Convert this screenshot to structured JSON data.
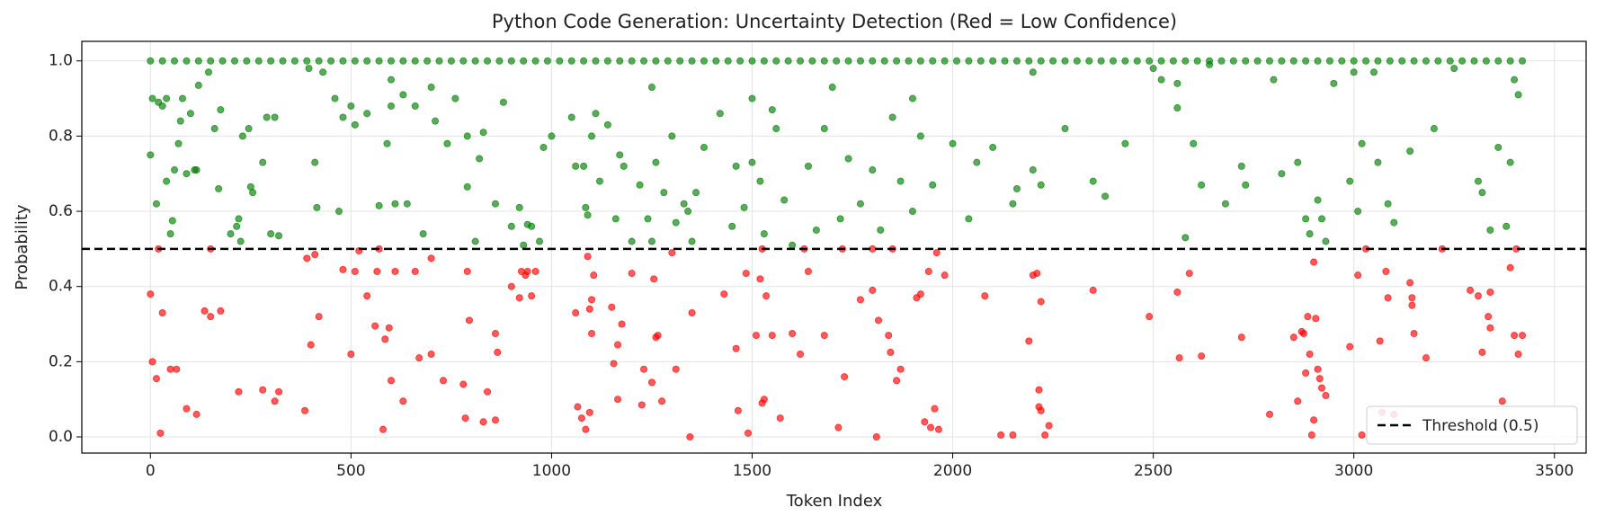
{
  "chart_data": {
    "type": "scatter",
    "title": "Python Code Generation: Uncertainty Detection (Red = Low Confidence)",
    "x_label": "Token Index",
    "y_label": "Probability",
    "xlim": [
      -171,
      3579
    ],
    "ylim": [
      -0.043,
      1.052
    ],
    "xticks": [
      0,
      500,
      1000,
      1500,
      2000,
      2500,
      3000,
      3500
    ],
    "yticks": [
      {
        "value": 0,
        "label": "0.0"
      },
      0.2,
      0.4,
      0.6,
      0.8,
      {
        "value": 1,
        "label": "1.0"
      }
    ],
    "grid": true,
    "legend_position": "lower right",
    "threshold": {
      "value": 0.5,
      "label": "Threshold (0.5)",
      "color": "#000000"
    },
    "series": [
      {
        "color": "#ff0000",
        "x": [
          0,
          5,
          15,
          20,
          25,
          30,
          50,
          65,
          90,
          115,
          135,
          150,
          150,
          175,
          220,
          280,
          310,
          320,
          385,
          390,
          400,
          410,
          420,
          480,
          500,
          510,
          520,
          540,
          560,
          565,
          570,
          580,
          585,
          595,
          600,
          610,
          630,
          660,
          670,
          700,
          700,
          730,
          780,
          785,
          790,
          795,
          830,
          840,
          860,
          860,
          865,
          900,
          920,
          925,
          935,
          940,
          950,
          960,
          1060,
          1065,
          1075,
          1085,
          1090,
          1095,
          1100,
          1100,
          1105,
          1095,
          1150,
          1155,
          1165,
          1175,
          1165,
          1200,
          1225,
          1230,
          1250,
          1255,
          1260,
          1265,
          1275,
          1300,
          1310,
          1345,
          1350,
          1430,
          1460,
          1465,
          1485,
          1490,
          1510,
          1520,
          1525,
          1530,
          1535,
          1525,
          1550,
          1570,
          1600,
          1620,
          1630,
          1640,
          1680,
          1715,
          1725,
          1730,
          1770,
          1800,
          1800,
          1810,
          1815,
          1840,
          1845,
          1850,
          1860,
          1870,
          1910,
          1920,
          1930,
          1940,
          1945,
          1955,
          1960,
          1965,
          1980,
          2080,
          2120,
          2150,
          2190,
          2200,
          2210,
          2215,
          2215,
          2220,
          2220,
          2230,
          2240,
          2350,
          2490,
          2560,
          2565,
          2590,
          2620,
          2720,
          2790,
          2850,
          2860,
          2870,
          2875,
          2880,
          2885,
          2890,
          2895,
          2900,
          2905,
          2910,
          2915,
          2920,
          2930,
          2990,
          3010,
          3020,
          3030,
          3065,
          3070,
          3080,
          3085,
          3100,
          3140,
          3145,
          3145,
          3150,
          3180,
          3220,
          3290,
          3310,
          3320,
          3340,
          3335,
          3340,
          3370,
          3390,
          3400,
          3405,
          3410,
          3420,
          2900
        ],
        "values": [
          0.38,
          0.2,
          0.155,
          0.5,
          0.01,
          0.33,
          0.18,
          0.18,
          0.075,
          0.06,
          0.335,
          0.32,
          0.5,
          0.335,
          0.12,
          0.125,
          0.095,
          0.12,
          0.07,
          0.475,
          0.245,
          0.485,
          0.32,
          0.445,
          0.22,
          0.44,
          0.495,
          0.375,
          0.295,
          0.44,
          0.5,
          0.02,
          0.26,
          0.29,
          0.15,
          0.44,
          0.095,
          0.44,
          0.21,
          0.22,
          0.475,
          0.15,
          0.14,
          0.05,
          0.44,
          0.31,
          0.04,
          0.12,
          0.275,
          0.045,
          0.225,
          0.4,
          0.37,
          0.44,
          0.43,
          0.44,
          0.375,
          0.44,
          0.33,
          0.08,
          0.05,
          0.02,
          0.48,
          0.34,
          0.365,
          0.275,
          0.43,
          0.065,
          0.345,
          0.195,
          0.1,
          0.3,
          0.245,
          0.435,
          0.085,
          0.18,
          0.145,
          0.42,
          0.265,
          0.27,
          0.095,
          0.49,
          0.18,
          0.0,
          0.33,
          0.38,
          0.235,
          0.07,
          0.435,
          0.01,
          0.27,
          0.42,
          0.09,
          0.1,
          0.375,
          0.5,
          0.27,
          0.05,
          0.275,
          0.22,
          0.5,
          0.44,
          0.27,
          0.025,
          0.5,
          0.16,
          0.365,
          0.39,
          0.5,
          0.0,
          0.31,
          0.27,
          0.225,
          0.5,
          0.15,
          0.18,
          0.37,
          0.38,
          0.04,
          0.44,
          0.025,
          0.075,
          0.49,
          0.02,
          0.43,
          0.375,
          0.005,
          0.005,
          0.255,
          0.43,
          0.435,
          0.08,
          0.125,
          0.36,
          0.07,
          0.005,
          0.03,
          0.39,
          0.32,
          0.385,
          0.21,
          0.435,
          0.215,
          0.265,
          0.06,
          0.265,
          0.095,
          0.28,
          0.275,
          0.17,
          0.32,
          0.22,
          0.005,
          0.045,
          0.315,
          0.18,
          0.155,
          0.13,
          0.11,
          0.24,
          0.43,
          0.005,
          0.5,
          0.255,
          0.065,
          0.44,
          0.37,
          0.06,
          0.41,
          0.35,
          0.37,
          0.275,
          0.21,
          0.5,
          0.39,
          0.375,
          0.225,
          0.385,
          0.32,
          0.29,
          0.095,
          0.45,
          0.27,
          0.5,
          0.22,
          0.27,
          0.465
        ]
      },
      {
        "color": "#008000",
        "x": [
          0,
          5,
          15,
          20,
          30,
          40,
          40,
          50,
          55,
          60,
          70,
          75,
          80,
          90,
          100,
          110,
          115,
          120,
          145,
          160,
          170,
          175,
          200,
          215,
          220,
          225,
          230,
          245,
          250,
          255,
          280,
          290,
          300,
          310,
          320,
          395,
          410,
          415,
          430,
          460,
          470,
          480,
          500,
          510,
          540,
          570,
          590,
          600,
          610,
          630,
          640,
          660,
          680,
          710,
          740,
          760,
          790,
          790,
          810,
          820,
          830,
          860,
          880,
          900,
          920,
          930,
          940,
          950,
          970,
          980,
          1000,
          1050,
          1060,
          1080,
          1085,
          1090,
          1100,
          1110,
          1120,
          1140,
          1160,
          1170,
          1180,
          1200,
          1220,
          1240,
          1250,
          1260,
          1280,
          1300,
          1310,
          1330,
          1340,
          1350,
          1360,
          1380,
          1420,
          1450,
          1460,
          1480,
          1500,
          1520,
          1530,
          1560,
          1580,
          1600,
          1640,
          1660,
          1680,
          1720,
          1740,
          1770,
          1800,
          1820,
          1850,
          1870,
          1900,
          1920,
          1950,
          2000,
          2040,
          2060,
          2100,
          2150,
          2160,
          2200,
          2220,
          2280,
          2350,
          2380,
          2430,
          2560,
          2580,
          2600,
          2620,
          2680,
          2720,
          2730,
          2820,
          2860,
          2880,
          2890,
          2910,
          2920,
          2930,
          2990,
          3010,
          3020,
          3060,
          3085,
          3100,
          3140,
          3200,
          3310,
          3320,
          3340,
          3360,
          3380,
          3390,
          3400,
          3410,
          2500,
          2520,
          2560,
          2640,
          3000,
          3050,
          3250,
          1500,
          1550,
          700,
          1700,
          2200,
          2800,
          1250,
          1900,
          600,
          2950
        ],
        "values": [
          0.75,
          0.9,
          0.62,
          0.89,
          0.88,
          0.9,
          0.68,
          0.54,
          0.575,
          0.71,
          0.78,
          0.84,
          0.9,
          0.7,
          0.86,
          0.71,
          0.71,
          0.935,
          0.97,
          0.82,
          0.66,
          0.87,
          0.54,
          0.56,
          0.58,
          0.52,
          0.8,
          0.82,
          0.665,
          0.65,
          0.73,
          0.85,
          0.54,
          0.85,
          0.535,
          0.98,
          0.73,
          0.61,
          0.97,
          0.9,
          0.6,
          0.85,
          0.88,
          0.83,
          0.86,
          0.615,
          0.78,
          0.88,
          0.62,
          0.91,
          0.62,
          0.88,
          0.54,
          0.84,
          0.78,
          0.9,
          0.665,
          0.8,
          0.52,
          0.74,
          0.81,
          0.62,
          0.89,
          0.56,
          0.61,
          0.51,
          0.565,
          0.56,
          0.52,
          0.77,
          0.8,
          0.85,
          0.72,
          0.72,
          0.61,
          0.59,
          0.8,
          0.86,
          0.68,
          0.83,
          0.58,
          0.75,
          0.72,
          0.52,
          0.67,
          0.58,
          0.52,
          0.73,
          0.65,
          0.8,
          0.57,
          0.62,
          0.6,
          0.52,
          0.65,
          0.77,
          0.86,
          0.56,
          0.72,
          0.61,
          0.73,
          0.68,
          0.54,
          0.82,
          0.63,
          0.51,
          0.72,
          0.55,
          0.82,
          0.58,
          0.74,
          0.62,
          0.71,
          0.55,
          0.85,
          0.68,
          0.6,
          0.8,
          0.67,
          0.78,
          0.58,
          0.73,
          0.77,
          0.62,
          0.66,
          0.71,
          0.67,
          0.82,
          0.68,
          0.64,
          0.78,
          0.875,
          0.53,
          0.78,
          0.67,
          0.62,
          0.72,
          0.67,
          0.7,
          0.73,
          0.58,
          0.54,
          0.63,
          0.58,
          0.52,
          0.68,
          0.6,
          0.78,
          0.73,
          0.62,
          0.57,
          0.76,
          0.82,
          0.68,
          0.65,
          0.55,
          0.77,
          0.56,
          0.73,
          0.95,
          0.91,
          0.98,
          0.95,
          0.94,
          0.99,
          0.97,
          0.97,
          0.98,
          0.9,
          0.87,
          0.93,
          0.93,
          0.97,
          0.95,
          0.93,
          0.9,
          0.95,
          0.94
        ]
      },
      {
        "color": "#008000",
        "x": [
          0,
          30,
          60,
          90,
          120,
          150,
          180,
          210,
          240,
          270,
          300,
          330,
          360,
          390,
          420,
          450,
          480,
          510,
          540,
          570,
          600,
          630,
          660,
          690,
          720,
          750,
          780,
          810,
          840,
          870,
          900,
          930,
          960,
          990,
          1020,
          1050,
          1080,
          1110,
          1140,
          1170,
          1200,
          1230,
          1260,
          1290,
          1320,
          1350,
          1380,
          1410,
          1440,
          1470,
          1500,
          1530,
          1560,
          1590,
          1620,
          1650,
          1680,
          1710,
          1740,
          1770,
          1800,
          1830,
          1860,
          1890,
          1920,
          1950,
          1980,
          2010,
          2040,
          2070,
          2100,
          2130,
          2160,
          2190,
          2220,
          2250,
          2280,
          2310,
          2340,
          2370,
          2400,
          2430,
          2460,
          2490,
          2520,
          2550,
          2580,
          2610,
          2640,
          2670,
          2700,
          2730,
          2760,
          2790,
          2820,
          2850,
          2880,
          2910,
          2940,
          2970,
          3000,
          3030,
          3060,
          3090,
          3120,
          3150,
          3180,
          3210,
          3240,
          3270,
          3300,
          3330,
          3360,
          3390,
          3420
        ],
        "values": [
          1,
          1,
          1,
          1,
          1,
          1,
          1,
          1,
          1,
          1,
          1,
          1,
          1,
          1,
          1,
          1,
          1,
          1,
          1,
          1,
          1,
          1,
          1,
          1,
          1,
          1,
          1,
          1,
          1,
          1,
          1,
          1,
          1,
          1,
          1,
          1,
          1,
          1,
          1,
          1,
          1,
          1,
          1,
          1,
          1,
          1,
          1,
          1,
          1,
          1,
          1,
          1,
          1,
          1,
          1,
          1,
          1,
          1,
          1,
          1,
          1,
          1,
          1,
          1,
          1,
          1,
          1,
          1,
          1,
          1,
          1,
          1,
          1,
          1,
          1,
          1,
          1,
          1,
          1,
          1,
          1,
          1,
          1,
          1,
          1,
          1,
          1,
          1,
          1,
          1,
          1,
          1,
          1,
          1,
          1,
          1,
          1,
          1,
          1,
          1,
          1,
          1,
          1,
          1,
          1,
          1,
          1,
          1,
          1,
          1,
          1,
          1,
          1,
          1,
          1
        ]
      }
    ]
  }
}
